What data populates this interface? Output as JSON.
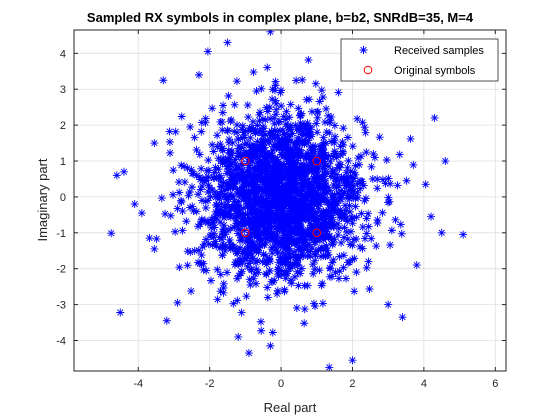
{
  "chart_data": {
    "type": "scatter",
    "title": "Sampled RX symbols in complex plane, b=b2, SNRdB=35, M=4",
    "xlabel": "Real part",
    "ylabel": "Imaginary part",
    "xlim": [
      -5.8,
      6.3
    ],
    "ylim": [
      -4.85,
      4.65
    ],
    "xticks": [
      -4,
      -2,
      0,
      2,
      4,
      6
    ],
    "yticks": [
      -4,
      -3,
      -2,
      -1,
      0,
      1,
      2,
      3,
      4
    ],
    "xtick_labels": [
      "-4",
      "-2",
      "0",
      "2",
      "4",
      "6"
    ],
    "ytick_labels": [
      "-4",
      "-3",
      "-2",
      "-1",
      "0",
      "1",
      "2",
      "3",
      "4"
    ],
    "grid": true,
    "legend_position": "top-right",
    "colors": {
      "received": "#0000ff",
      "original": "#ff0000"
    },
    "series": [
      {
        "name": "Received samples",
        "marker": "asterisk",
        "cloud": {
          "center": [
            0,
            0
          ],
          "std": 1.15,
          "count": 2200
        },
        "points": [
          [
            -0.3,
            4.6
          ],
          [
            1.35,
            -4.75
          ],
          [
            2.0,
            -4.55
          ],
          [
            5.1,
            -1.05
          ],
          [
            -4.4,
            0.7
          ],
          [
            -4.6,
            0.6
          ],
          [
            -4.1,
            -0.2
          ],
          [
            -3.9,
            -0.45
          ],
          [
            4.3,
            2.2
          ],
          [
            -3.3,
            3.25
          ],
          [
            3.3,
            3.8
          ],
          [
            -2.05,
            4.05
          ],
          [
            -0.3,
            -4.15
          ],
          [
            3.4,
            -3.35
          ],
          [
            -3.2,
            -3.45
          ],
          [
            -1.5,
            4.3
          ],
          [
            2.45,
            3.9
          ],
          [
            4.6,
            1.0
          ],
          [
            4.5,
            -1.0
          ],
          [
            -3.55,
            1.5
          ],
          [
            -3.55,
            -1.45
          ],
          [
            -2.9,
            -2.95
          ],
          [
            3.8,
            -1.9
          ],
          [
            -2.3,
            3.4
          ],
          [
            1.85,
            4.3
          ],
          [
            -0.9,
            -4.35
          ],
          [
            -1.2,
            -3.9
          ],
          [
            3.0,
            -3.0
          ],
          [
            4.05,
            0.35
          ],
          [
            4.2,
            -0.55
          ]
        ]
      },
      {
        "name": "Original symbols",
        "marker": "circle",
        "points": [
          [
            -1,
            1
          ],
          [
            1,
            1
          ],
          [
            -1,
            -1
          ],
          [
            1,
            -1
          ]
        ]
      }
    ]
  }
}
